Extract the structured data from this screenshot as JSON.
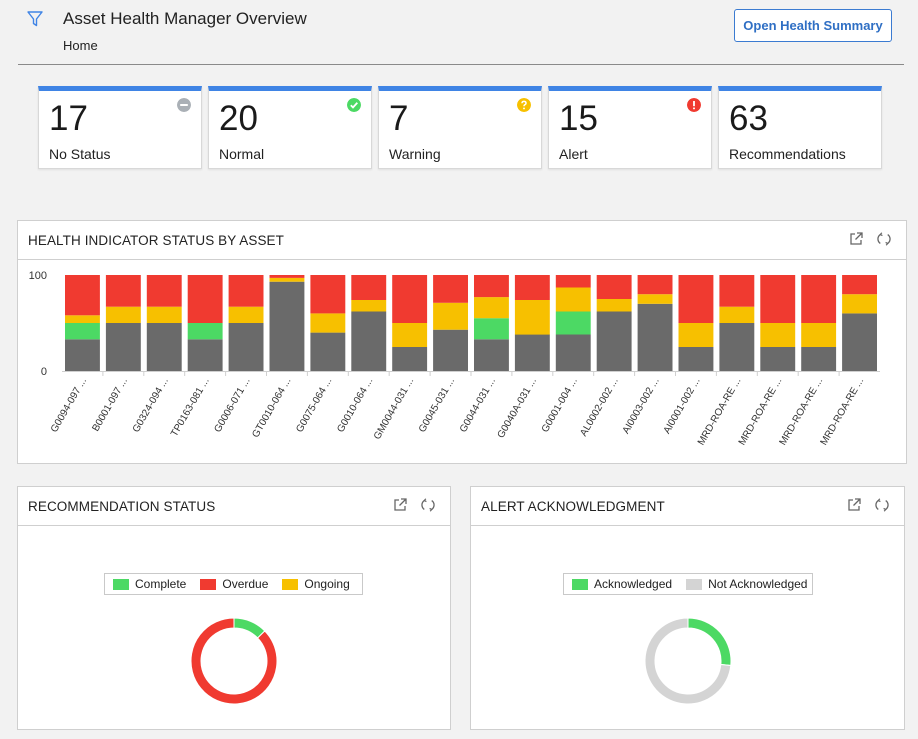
{
  "header": {
    "title": "Asset Health Manager Overview",
    "breadcrumb": "Home",
    "open_summary_label": "Open Health Summary"
  },
  "colors": {
    "accent": "#3f84e5",
    "no_status": "#aab0b6",
    "normal": "#4cd964",
    "warning": "#f7c000",
    "alert": "#f03a30",
    "dark_gray": "#6a6a6a",
    "light_gray": "#d4d4d4"
  },
  "cards": [
    {
      "value": "17",
      "label": "No Status",
      "icon": "minus-circle-icon",
      "icon_color": "#aab0b6"
    },
    {
      "value": "20",
      "label": "Normal",
      "icon": "check-circle-icon",
      "icon_color": "#4cd964"
    },
    {
      "value": "7",
      "label": "Warning",
      "icon": "question-circle-icon",
      "icon_color": "#f7c000"
    },
    {
      "value": "15",
      "label": "Alert",
      "icon": "exclamation-circle-icon",
      "icon_color": "#f03a30"
    },
    {
      "value": "63",
      "label": "Recommendations",
      "icon": "",
      "icon_color": ""
    }
  ],
  "health_panel": {
    "title": "HEALTH INDICATOR STATUS BY ASSET",
    "chart_data": {
      "type": "bar",
      "stacked": true,
      "ylim": [
        0,
        100
      ],
      "yticks": [
        0,
        100
      ],
      "categories": [
        "G0094-097 ...",
        "B0001-097 ...",
        "G0324-094 ...",
        "TP0163-081 ...",
        "G0006-071 ...",
        "GT0010-064 ...",
        "G0075-064 ...",
        "G0010-064 ...",
        "GM0044-031 ...",
        "G0045-031 ...",
        "G0044-031 ...",
        "G0040A-031 ...",
        "G0001-004 ...",
        "AL0002-002 ...",
        "AI0003-002 ...",
        "AI0001-002 ...",
        "MRD-ROA-RE ...",
        "MRD-ROA-RE ...",
        "MRD-ROA-RE ...",
        "MRD-ROA-RE ..."
      ],
      "series": [
        {
          "color": "#6a6a6a",
          "values": [
            33,
            50,
            50,
            33,
            50,
            93,
            40,
            62,
            25,
            43,
            33,
            38,
            38,
            62,
            70,
            25,
            50,
            25,
            25,
            60
          ]
        },
        {
          "color": "#4cd964",
          "values": [
            17,
            0,
            0,
            17,
            0,
            0,
            0,
            0,
            0,
            0,
            22,
            0,
            24,
            0,
            0,
            0,
            0,
            0,
            0,
            0
          ]
        },
        {
          "color": "#f7c000",
          "values": [
            8,
            17,
            17,
            0,
            17,
            4,
            20,
            12,
            25,
            28,
            22,
            36,
            25,
            13,
            10,
            25,
            17,
            25,
            25,
            20
          ]
        },
        {
          "color": "#f03a30",
          "values": [
            42,
            33,
            33,
            50,
            33,
            3,
            40,
            26,
            50,
            29,
            23,
            26,
            13,
            25,
            20,
            50,
            33,
            50,
            50,
            20
          ]
        }
      ]
    }
  },
  "rec_panel": {
    "title": "RECOMMENDATION STATUS",
    "chart_data": {
      "type": "pie",
      "donut": true,
      "legend": [
        "Complete",
        "Overdue",
        "Ongoing"
      ],
      "legend_colors": [
        "#4cd964",
        "#f03a30",
        "#f7c000"
      ],
      "values": [
        8,
        55,
        0
      ]
    }
  },
  "alert_panel": {
    "title": "ALERT ACKNOWLEDGMENT",
    "chart_data": {
      "type": "pie",
      "donut": true,
      "legend": [
        "Acknowledged",
        "Not Acknowledged"
      ],
      "legend_colors": [
        "#4cd964",
        "#d4d4d4"
      ],
      "values": [
        4,
        11
      ]
    }
  }
}
